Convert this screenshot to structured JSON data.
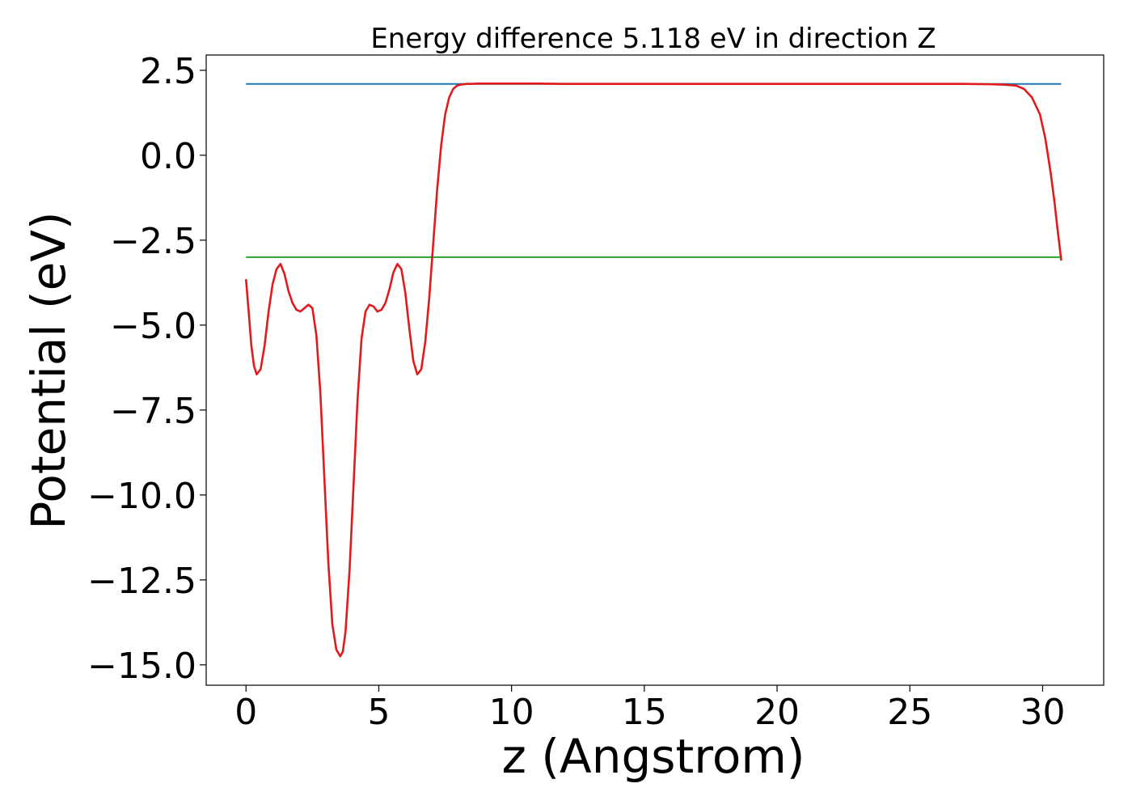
{
  "chart_data": {
    "type": "line",
    "title": "Energy difference 5.118 eV in direction Z",
    "xlabel": "z (Angstrom)",
    "ylabel": "Potential (eV)",
    "xlim": [
      -1.5,
      32.3
    ],
    "ylim": [
      -15.6,
      2.95
    ],
    "x_ticks": [
      0,
      5,
      10,
      15,
      20,
      25,
      30
    ],
    "x_tick_labels": [
      "0",
      "5",
      "10",
      "15",
      "20",
      "25",
      "30"
    ],
    "y_ticks": [
      2.5,
      0.0,
      -2.5,
      -5.0,
      -7.5,
      -10.0,
      -12.5,
      -15.0
    ],
    "y_tick_labels": [
      "2.5",
      "0.0",
      "−2.5",
      "−5.0",
      "−7.5",
      "−10.0",
      "−12.5",
      "−15.0"
    ],
    "grid": false,
    "series": [
      {
        "color": "#1f77b4",
        "x": [
          0,
          30.7
        ],
        "y": [
          2.1,
          2.1
        ]
      },
      {
        "color": "#2ca02c",
        "x": [
          0,
          30.7
        ],
        "y": [
          -3.0,
          -3.0
        ]
      },
      {
        "color": "#e31a1c",
        "x": [
          0.0,
          0.1,
          0.2,
          0.3,
          0.4,
          0.55,
          0.7,
          0.85,
          1.0,
          1.15,
          1.3,
          1.45,
          1.6,
          1.75,
          1.9,
          2.05,
          2.2,
          2.35,
          2.5,
          2.65,
          2.8,
          2.95,
          3.1,
          3.25,
          3.4,
          3.55,
          3.65,
          3.75,
          3.9,
          4.05,
          4.2,
          4.35,
          4.5,
          4.65,
          4.8,
          4.95,
          5.1,
          5.25,
          5.4,
          5.55,
          5.7,
          5.85,
          6.0,
          6.15,
          6.3,
          6.45,
          6.6,
          6.75,
          6.9,
          7.05,
          7.2,
          7.35,
          7.5,
          7.65,
          7.8,
          7.95,
          8.1,
          8.3,
          8.5,
          8.7,
          8.9,
          9.1,
          9.4,
          9.7,
          10.0,
          10.5,
          11.0,
          12.0,
          15.0,
          20.0,
          25.0,
          27.0,
          28.0,
          28.5,
          29.0,
          29.3,
          29.6,
          29.9,
          30.1,
          30.3,
          30.45,
          30.55,
          30.65,
          30.7
        ],
        "y": [
          -3.65,
          -4.6,
          -5.6,
          -6.2,
          -6.45,
          -6.3,
          -5.6,
          -4.6,
          -3.8,
          -3.35,
          -3.2,
          -3.5,
          -4.0,
          -4.35,
          -4.55,
          -4.6,
          -4.5,
          -4.4,
          -4.5,
          -5.3,
          -7.0,
          -9.5,
          -12.0,
          -13.8,
          -14.55,
          -14.75,
          -14.6,
          -14.0,
          -12.2,
          -9.7,
          -7.2,
          -5.4,
          -4.6,
          -4.4,
          -4.45,
          -4.6,
          -4.55,
          -4.35,
          -3.95,
          -3.45,
          -3.2,
          -3.35,
          -4.05,
          -5.1,
          -6.05,
          -6.45,
          -6.3,
          -5.5,
          -4.2,
          -2.6,
          -1.0,
          0.3,
          1.2,
          1.7,
          1.95,
          2.05,
          2.08,
          2.1,
          2.1,
          2.11,
          2.11,
          2.11,
          2.11,
          2.11,
          2.11,
          2.11,
          2.11,
          2.1,
          2.1,
          2.1,
          2.1,
          2.1,
          2.09,
          2.08,
          2.05,
          1.95,
          1.7,
          1.2,
          0.5,
          -0.5,
          -1.4,
          -2.1,
          -2.75,
          -3.1
        ]
      }
    ]
  }
}
